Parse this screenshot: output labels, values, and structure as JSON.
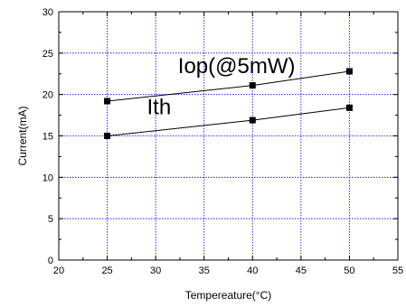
{
  "chart_data": {
    "type": "line",
    "xlabel": "Tempereature(°C)",
    "ylabel": "Current(mA)",
    "xlim": [
      20,
      55
    ],
    "ylim": [
      0,
      30
    ],
    "x_ticks": [
      20,
      25,
      30,
      35,
      40,
      45,
      50,
      55
    ],
    "y_ticks": [
      0,
      5,
      10,
      15,
      20,
      25,
      30
    ],
    "grid": true,
    "grid_style": "dotted",
    "grid_color": "#0000ff",
    "marker": "square",
    "line_color": "#000000",
    "x": [
      25,
      40,
      50
    ],
    "series": [
      {
        "label": "Iop(@5mW)",
        "values": [
          19.2,
          21.1,
          22.8
        ]
      },
      {
        "label": "Ith",
        "values": [
          15.0,
          16.9,
          18.4
        ]
      }
    ]
  }
}
